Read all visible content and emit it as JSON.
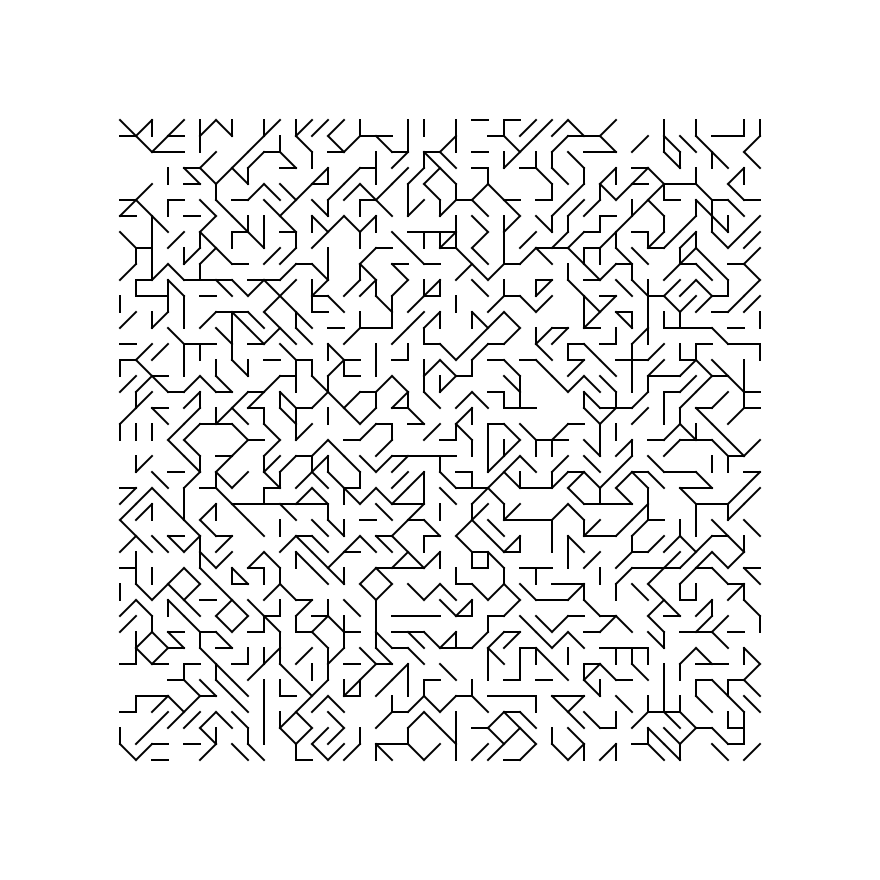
{
  "artwork": {
    "type": "generative-truchet-lines",
    "grid_columns": 40,
    "grid_rows": 40,
    "tile_types": [
      "horizontal",
      "vertical",
      "diagonal-up",
      "diagonal-down",
      "empty"
    ],
    "tile_weights": [
      0.22,
      0.22,
      0.2,
      0.2,
      0.16
    ],
    "stroke_color": "#000000",
    "background_color": "#ffffff"
  }
}
